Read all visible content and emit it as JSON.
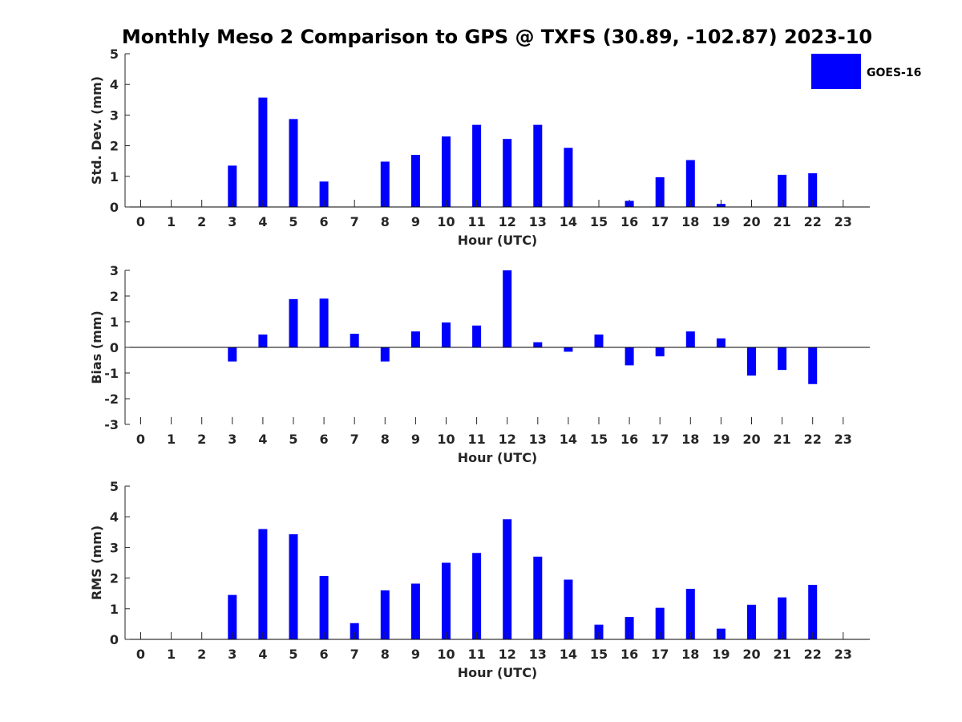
{
  "title": "Monthly Meso 2 Comparison to GPS @ TXFS (30.89, -102.87) 2023-10",
  "legend": {
    "label": "GOES-16",
    "placement": "top-right"
  },
  "colors": {
    "bar": "#0000ff",
    "axis": "#262626"
  },
  "chart_data": [
    {
      "type": "bar",
      "xlabel": "Hour (UTC)",
      "ylabel": "Std. Dev. (mm)",
      "ylim": [
        0,
        5
      ],
      "yticks": [
        "0",
        "1",
        "2",
        "3",
        "4",
        "5"
      ],
      "categories": [
        "0",
        "1",
        "2",
        "3",
        "4",
        "5",
        "6",
        "7",
        "8",
        "9",
        "10",
        "11",
        "12",
        "13",
        "14",
        "15",
        "16",
        "17",
        "18",
        "19",
        "20",
        "21",
        "22",
        "23"
      ],
      "series": [
        {
          "name": "GOES-16",
          "values": [
            null,
            null,
            null,
            1.35,
            3.57,
            2.87,
            0.83,
            null,
            1.48,
            1.7,
            2.3,
            2.68,
            2.22,
            2.68,
            1.93,
            null,
            0.2,
            0.97,
            1.53,
            0.1,
            null,
            1.05,
            1.1,
            null
          ]
        }
      ]
    },
    {
      "type": "bar",
      "xlabel": "Hour (UTC)",
      "ylabel": "Bias (mm)",
      "ylim": [
        -3,
        3
      ],
      "yticks": [
        "-3",
        "-2",
        "-1",
        "0",
        "1",
        "2",
        "3"
      ],
      "categories": [
        "0",
        "1",
        "2",
        "3",
        "4",
        "5",
        "6",
        "7",
        "8",
        "9",
        "10",
        "11",
        "12",
        "13",
        "14",
        "15",
        "16",
        "17",
        "18",
        "19",
        "20",
        "21",
        "22",
        "23"
      ],
      "series": [
        {
          "name": "GOES-16",
          "values": [
            null,
            null,
            null,
            -0.55,
            0.5,
            1.88,
            1.9,
            0.53,
            -0.55,
            0.62,
            0.97,
            0.85,
            3.0,
            0.2,
            -0.17,
            0.5,
            -0.7,
            -0.35,
            0.62,
            0.35,
            -1.1,
            -0.88,
            -1.43,
            null
          ]
        }
      ]
    },
    {
      "type": "bar",
      "xlabel": "Hour (UTC)",
      "ylabel": "RMS (mm)",
      "ylim": [
        0,
        5
      ],
      "yticks": [
        "0",
        "1",
        "2",
        "3",
        "4",
        "5"
      ],
      "categories": [
        "0",
        "1",
        "2",
        "3",
        "4",
        "5",
        "6",
        "7",
        "8",
        "9",
        "10",
        "11",
        "12",
        "13",
        "14",
        "15",
        "16",
        "17",
        "18",
        "19",
        "20",
        "21",
        "22",
        "23"
      ],
      "series": [
        {
          "name": "GOES-16",
          "values": [
            null,
            null,
            null,
            1.45,
            3.6,
            3.43,
            2.07,
            0.53,
            1.6,
            1.82,
            2.5,
            2.82,
            3.92,
            2.7,
            1.95,
            0.48,
            0.73,
            1.03,
            1.65,
            0.35,
            1.13,
            1.37,
            1.78,
            null
          ]
        }
      ]
    }
  ]
}
